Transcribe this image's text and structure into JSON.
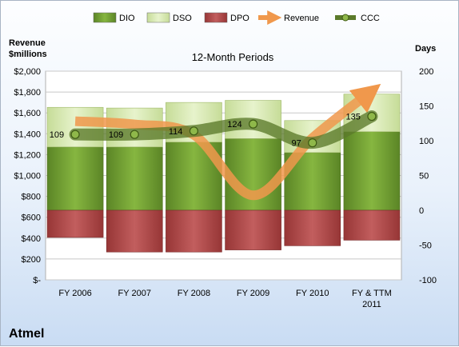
{
  "chart_data": {
    "type": "bar",
    "title": "12-Month Periods",
    "company": "Atmel",
    "left_axis": {
      "label_line1": "Revenue",
      "label_line2": "$millions",
      "min": 0,
      "max": 2000,
      "step": 200,
      "ticks": [
        "$-",
        "$200",
        "$400",
        "$600",
        "$800",
        "$1,000",
        "$1,200",
        "$1,400",
        "$1,600",
        "$1,800",
        "$2,000"
      ]
    },
    "right_axis": {
      "label": "Days",
      "min": -100,
      "max": 200,
      "step": 50,
      "ticks": [
        "-100",
        "-50",
        "0",
        "50",
        "100",
        "150",
        "200"
      ]
    },
    "categories": [
      [
        "FY 2006"
      ],
      [
        "FY 2007"
      ],
      [
        "FY 2008"
      ],
      [
        "FY 2009"
      ],
      [
        "FY 2010"
      ],
      [
        "FY & TTM",
        "2011"
      ]
    ],
    "series": [
      {
        "name": "DIO",
        "axis": "days",
        "color": "#6e9b2f",
        "values": [
          91,
          91,
          98,
          103,
          83,
          113
        ]
      },
      {
        "name": "DSO",
        "axis": "days",
        "color": "#d8eab2",
        "values": [
          57,
          56,
          57,
          55,
          46,
          54
        ]
      },
      {
        "name": "DPO",
        "axis": "days",
        "color": "#b24a4a",
        "values": [
          -39,
          -60,
          -60,
          -57,
          -51,
          -43
        ]
      },
      {
        "name": "Revenue",
        "axis": "revenue",
        "color": "#f0984c",
        "values": [
          1520,
          1490,
          1390,
          810,
          1360,
          1810
        ]
      },
      {
        "name": "CCC",
        "axis": "days",
        "color": "#5b7a2a",
        "values": [
          109,
          109,
          114,
          124,
          97,
          135
        ]
      }
    ],
    "ccc_labels": [
      "109",
      "109",
      "114",
      "124",
      "97",
      "135"
    ],
    "legend_position": "top",
    "grid": true
  }
}
